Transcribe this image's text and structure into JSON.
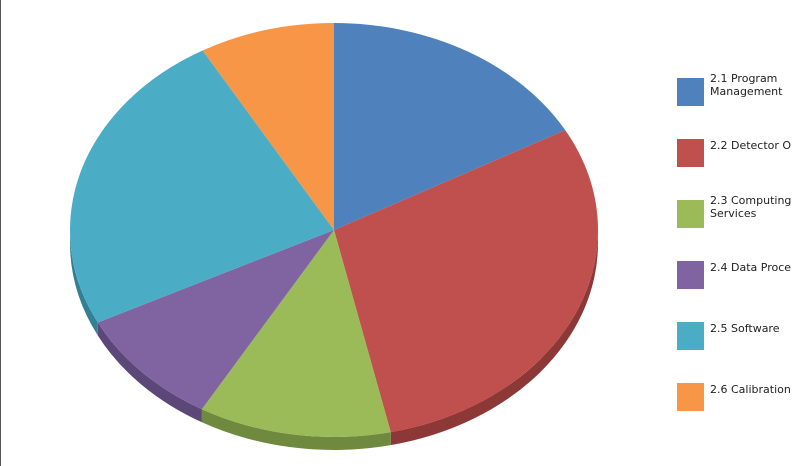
{
  "chart_data": {
    "type": "pie",
    "style": "3d",
    "legend_position": "right",
    "categories": [
      "2.1 Program Management",
      "2.2 Detector O",
      "2.3 Computing Services",
      "2.4 Data Proce",
      "2.5 Software",
      "2.6 Calibration"
    ],
    "values": [
      17.0,
      29.6,
      11.8,
      9.3,
      24.1,
      8.3
    ],
    "colors": [
      "#4f81bd",
      "#c0504d",
      "#9bbb59",
      "#8064a2",
      "#4bacc6",
      "#f79646"
    ],
    "side_colors": [
      "#3a6191",
      "#8c3836",
      "#6f8a3e",
      "#5c4878",
      "#337f93",
      "#b86d32"
    ]
  }
}
